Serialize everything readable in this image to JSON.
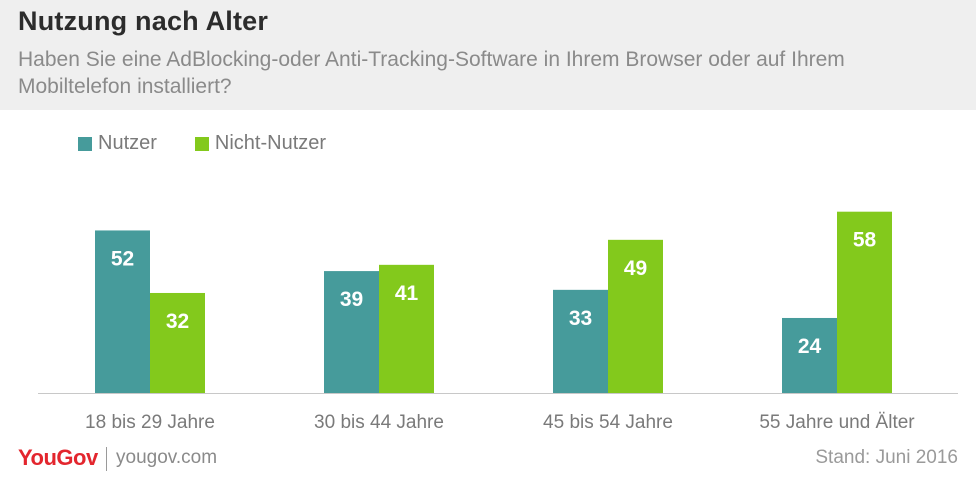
{
  "header": {
    "title": "Nutzung nach Alter",
    "subtitle": "Haben Sie eine AdBlocking-oder Anti-Tracking-Software in Ihrem Browser oder auf Ihrem Mobiltelefon installiert?"
  },
  "colors": {
    "nutzer": "#469b9b",
    "nicht_nutzer": "#83c91c",
    "brand": "#e3262e"
  },
  "chart_data": {
    "type": "bar",
    "categories": [
      "18 bis 29 Jahre",
      "30 bis 44 Jahre",
      "45 bis 54 Jahre",
      "55 Jahre und Älter"
    ],
    "series": [
      {
        "name": "Nutzer",
        "values": [
          52,
          39,
          33,
          24
        ]
      },
      {
        "name": "Nicht-Nutzer",
        "values": [
          32,
          41,
          49,
          58
        ]
      }
    ],
    "ylim": [
      0,
      60
    ],
    "grid": false,
    "legend": "top-left",
    "data_labels": true
  },
  "footer": {
    "logo": "YouGov",
    "url": "yougov.com",
    "stand": "Stand: Juni 2016"
  }
}
